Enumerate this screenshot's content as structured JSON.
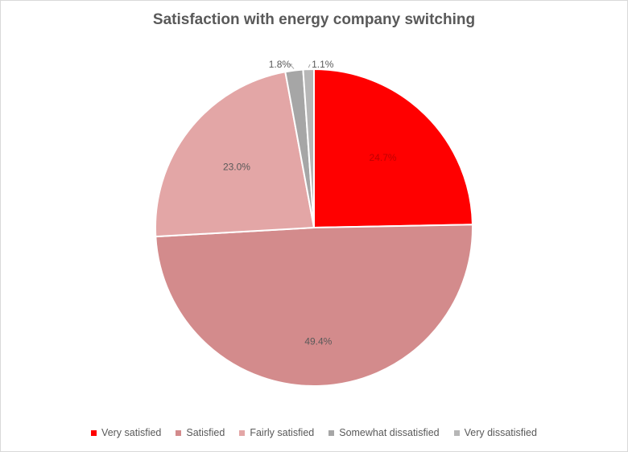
{
  "chart_data": {
    "type": "pie",
    "title": "Satisfaction with energy company switching",
    "categories": [
      "Very satisfied",
      "Satisfied",
      "Fairly satisfied",
      "Somewhat dissatisfied",
      "Very dissatisfied"
    ],
    "values": [
      24.7,
      49.4,
      23.0,
      1.8,
      1.1
    ],
    "labels": [
      "24.7%",
      "49.4%",
      "23.0%",
      "1.8%",
      "1.1%"
    ],
    "colors": [
      "#ff0000",
      "#d38b8c",
      "#e3a6a6",
      "#a6a6a6",
      "#b7b7b7"
    ],
    "start_angle": "12 o'clock",
    "direction": "clockwise",
    "legend_position": "bottom"
  }
}
